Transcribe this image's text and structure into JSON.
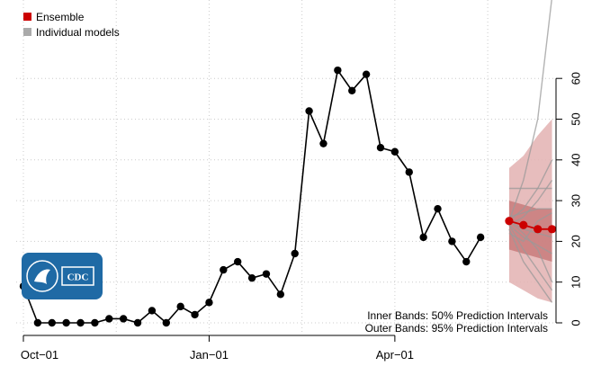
{
  "chart_data": {
    "type": "line",
    "title": "",
    "xlabel": "",
    "ylabel": "",
    "x_ticks": [
      "Oct−01",
      "Jan−01",
      "Apr−01"
    ],
    "y_ticks": [
      0,
      10,
      20,
      30,
      40,
      50,
      60
    ],
    "ylim": [
      0,
      65
    ],
    "grid": true,
    "legend_position": "top-left",
    "legend": [
      {
        "label": "Ensemble",
        "color": "#cc0000"
      },
      {
        "label": "Individual models",
        "color": "#aaaaaa"
      }
    ],
    "observed": {
      "week_index": [
        0,
        1,
        2,
        3,
        4,
        5,
        6,
        7,
        8,
        9,
        10,
        11,
        12,
        13,
        14,
        15,
        16,
        17,
        18,
        19,
        20,
        21,
        22,
        23,
        24,
        25,
        26,
        27,
        28,
        29,
        30,
        31,
        32,
        33
      ],
      "values": [
        9,
        0,
        0,
        0,
        0,
        0,
        1,
        1,
        0,
        3,
        0,
        4,
        2,
        5,
        13,
        15,
        11,
        12,
        7,
        17,
        52,
        44,
        62,
        57,
        61,
        43,
        42,
        37,
        21,
        28,
        20,
        15,
        21,
        null
      ]
    },
    "ensemble_forecast": {
      "week_index": [
        34,
        35,
        36,
        37
      ],
      "median": [
        25,
        24,
        23,
        23
      ],
      "lower50": [
        18,
        17,
        16,
        15
      ],
      "upper50": [
        30,
        29,
        28,
        28
      ],
      "lower95": [
        10,
        8,
        6,
        5
      ],
      "upper95": [
        38,
        41,
        46,
        50
      ]
    },
    "individual_models": [
      [
        25,
        22,
        18,
        10
      ],
      [
        24,
        26,
        30,
        35
      ],
      [
        25,
        23,
        22,
        21
      ],
      [
        26,
        27,
        28,
        28
      ],
      [
        24,
        21,
        19,
        17
      ],
      [
        33,
        33,
        33,
        33
      ],
      [
        22,
        20,
        25,
        27
      ],
      [
        25,
        35,
        50,
        80
      ],
      [
        24,
        18,
        13,
        8
      ],
      [
        25,
        28,
        33,
        40
      ],
      [
        23,
        15,
        10,
        5
      ]
    ],
    "annotations": [
      "Inner Bands: 50% Prediction Intervals",
      "Outer Bands: 95% Prediction Intervals"
    ],
    "logo_text": "CDC",
    "colors": {
      "observed": "#000000",
      "ensemble": "#cc0000",
      "band_outer": "#e3b2b2",
      "band_inner": "#c77777",
      "individual": "#999999",
      "grid": "#cccccc",
      "logo_bg": "#1f6aa5"
    }
  }
}
